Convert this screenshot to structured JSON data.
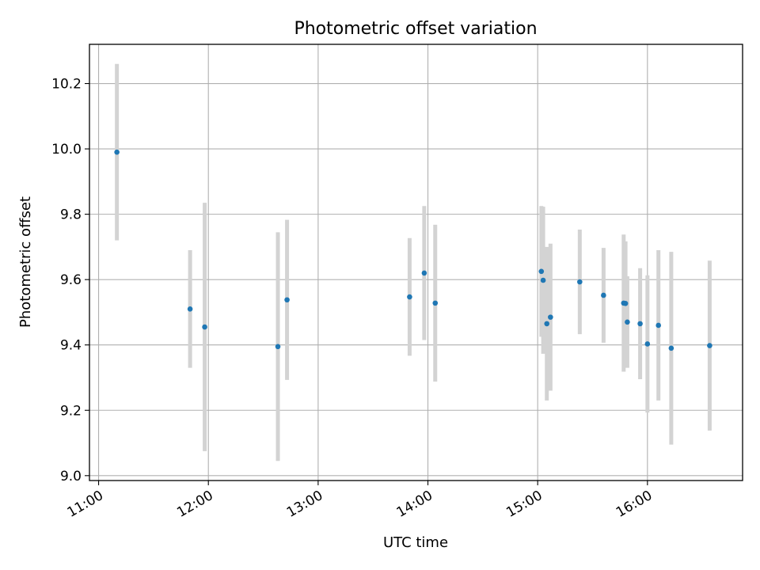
{
  "chart_data": {
    "type": "scatter",
    "title": "Photometric offset variation",
    "xlabel": "UTC time",
    "ylabel": "Photometric offset",
    "xlim": [
      "10:55",
      "16:52"
    ],
    "ylim": [
      8.985,
      10.32
    ],
    "x_ticks": [
      "11:00",
      "12:00",
      "13:00",
      "14:00",
      "15:00",
      "16:00"
    ],
    "y_ticks": [
      9.0,
      9.2,
      9.4,
      9.6,
      9.8,
      10.0,
      10.2
    ],
    "y_tick_labels": [
      "9.0",
      "9.2",
      "9.4",
      "9.6",
      "9.8",
      "10.0",
      "10.2"
    ],
    "grid": true,
    "colors": {
      "point": "#1f77b4",
      "errorbar": "#d3d3d3",
      "grid": "#b0b0b0"
    },
    "points": [
      {
        "x": "11:10",
        "y": 9.99,
        "err": 0.27
      },
      {
        "x": "11:50",
        "y": 9.51,
        "err": 0.18
      },
      {
        "x": "11:58",
        "y": 9.455,
        "err": 0.38
      },
      {
        "x": "12:38",
        "y": 9.395,
        "err": 0.35
      },
      {
        "x": "12:43",
        "y": 9.538,
        "err": 0.245
      },
      {
        "x": "13:50",
        "y": 9.547,
        "err": 0.18
      },
      {
        "x": "13:58",
        "y": 9.62,
        "err": 0.205
      },
      {
        "x": "14:04",
        "y": 9.528,
        "err": 0.24
      },
      {
        "x": "15:02",
        "y": 9.625,
        "err": 0.2
      },
      {
        "x": "15:03",
        "y": 9.598,
        "err": 0.225
      },
      {
        "x": "15:05",
        "y": 9.465,
        "err": 0.235
      },
      {
        "x": "15:07",
        "y": 9.485,
        "err": 0.225
      },
      {
        "x": "15:23",
        "y": 9.593,
        "err": 0.16
      },
      {
        "x": "15:36",
        "y": 9.552,
        "err": 0.145
      },
      {
        "x": "15:47",
        "y": 9.528,
        "err": 0.21
      },
      {
        "x": "15:48",
        "y": 9.527,
        "err": 0.19
      },
      {
        "x": "15:49",
        "y": 9.47,
        "err": 0.14
      },
      {
        "x": "15:56",
        "y": 9.465,
        "err": 0.17
      },
      {
        "x": "16:00",
        "y": 9.403,
        "err": 0.21
      },
      {
        "x": "16:06",
        "y": 9.46,
        "err": 0.23
      },
      {
        "x": "16:13",
        "y": 9.39,
        "err": 0.295
      },
      {
        "x": "16:34",
        "y": 9.398,
        "err": 0.26
      }
    ]
  }
}
